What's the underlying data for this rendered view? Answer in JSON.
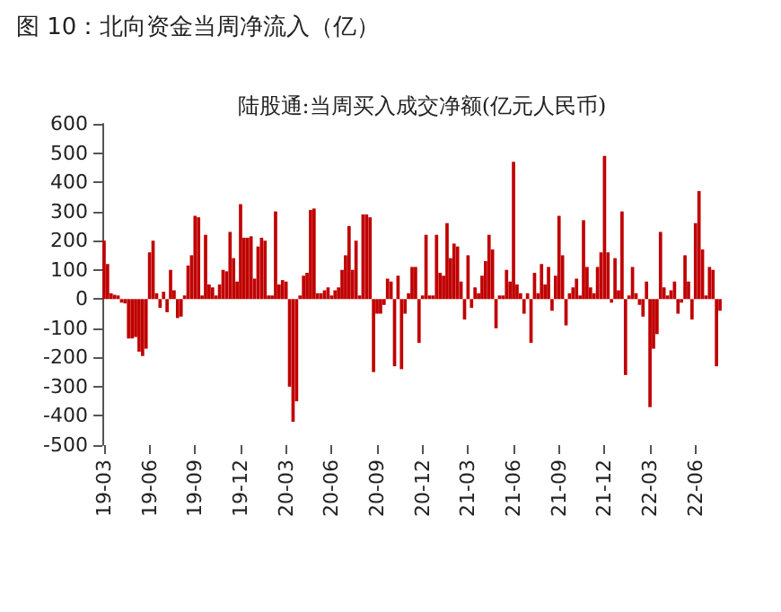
{
  "chart_data": {
    "type": "bar",
    "title": "图 10：北向资金当周净流入（亿）",
    "subtitle": "陆股通:当周买入成交净额(亿元人民币)",
    "categories": [
      "19-03",
      null,
      null,
      null,
      null,
      null,
      null,
      null,
      null,
      null,
      null,
      null,
      null,
      "19-06",
      null,
      null,
      null,
      null,
      null,
      null,
      null,
      null,
      null,
      null,
      null,
      null,
      "19-09",
      null,
      null,
      null,
      null,
      null,
      null,
      null,
      null,
      null,
      null,
      null,
      null,
      "19-12",
      null,
      null,
      null,
      null,
      null,
      null,
      null,
      null,
      null,
      null,
      null,
      null,
      "20-03",
      null,
      null,
      null,
      null,
      null,
      null,
      null,
      null,
      null,
      null,
      null,
      null,
      "20-06",
      null,
      null,
      null,
      null,
      null,
      null,
      null,
      null,
      null,
      null,
      null,
      null,
      "20-09",
      null,
      null,
      null,
      null,
      null,
      null,
      null,
      null,
      null,
      null,
      null,
      null,
      "20-12",
      null,
      null,
      null,
      null,
      null,
      null,
      null,
      null,
      null,
      null,
      null,
      null,
      "21-03",
      null,
      null,
      null,
      null,
      null,
      null,
      null,
      null,
      null,
      null,
      null,
      null,
      "21-06",
      null,
      null,
      null,
      null,
      null,
      null,
      null,
      null,
      null,
      null,
      null,
      null,
      "21-09",
      null,
      null,
      null,
      null,
      null,
      null,
      null,
      null,
      null,
      null,
      null,
      null,
      "21-12",
      null,
      null,
      null,
      null,
      null,
      null,
      null,
      null,
      null,
      null,
      null,
      null,
      "22-03",
      null,
      null,
      null,
      null,
      null,
      null,
      null,
      null,
      null,
      null,
      null,
      null,
      "22-06",
      null,
      null,
      null,
      null,
      null,
      null,
      null
    ],
    "values": [
      200,
      120,
      20,
      15,
      5,
      -10,
      -15,
      -135,
      -135,
      -130,
      -180,
      -195,
      -170,
      160,
      200,
      20,
      -30,
      25,
      -45,
      100,
      30,
      -65,
      -60,
      5,
      115,
      150,
      285,
      280,
      0,
      220,
      50,
      40,
      0,
      50,
      100,
      95,
      230,
      140,
      60,
      325,
      210,
      210,
      215,
      70,
      180,
      210,
      200,
      0,
      0,
      300,
      50,
      65,
      60,
      -300,
      -420,
      -350,
      10,
      80,
      90,
      305,
      310,
      20,
      20,
      30,
      40,
      10,
      30,
      40,
      100,
      150,
      250,
      100,
      200,
      10,
      290,
      290,
      280,
      -250,
      -50,
      -50,
      -20,
      70,
      60,
      -230,
      80,
      -240,
      -50,
      20,
      110,
      110,
      -150,
      10,
      220,
      0,
      10,
      220,
      90,
      80,
      260,
      140,
      190,
      180,
      60,
      -70,
      150,
      -30,
      40,
      20,
      80,
      130,
      220,
      170,
      -100,
      10,
      0,
      100,
      60,
      470,
      50,
      20,
      -50,
      20,
      -150,
      90,
      20,
      120,
      50,
      110,
      -40,
      80,
      285,
      150,
      -90,
      20,
      40,
      70,
      0,
      270,
      110,
      40,
      20,
      110,
      160,
      490,
      160,
      -10,
      140,
      30,
      300,
      -260,
      0,
      110,
      20,
      -20,
      -60,
      60,
      -370,
      -170,
      -120,
      230,
      40,
      0,
      30,
      60,
      -50,
      -10,
      150,
      60,
      -70,
      260,
      370,
      170,
      10,
      110,
      100,
      -230,
      -40
    ],
    "color": "#c00000",
    "ylim": [
      -500,
      600
    ],
    "yticks": [
      -500,
      -400,
      -300,
      -200,
      -100,
      0,
      100,
      200,
      300,
      400,
      500,
      600
    ],
    "grid": false
  }
}
